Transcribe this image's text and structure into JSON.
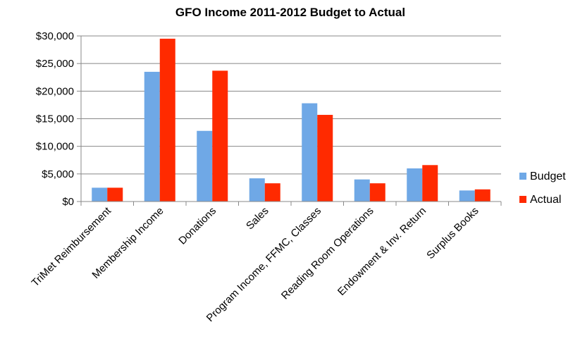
{
  "chart_data": {
    "type": "bar",
    "title": "GFO Income 2011-2012 Budget to Actual",
    "xlabel": "",
    "ylabel": "",
    "categories": [
      "TriMet Reimbursement",
      "Membership Income",
      "Donations",
      "Sales",
      "Program Income, FFMC, Classes",
      "Reading Room Operations",
      "Endowment & Inv. Return",
      "Surplus Books"
    ],
    "series": [
      {
        "name": "Budget",
        "color": "#6fa8e6",
        "values": [
          2500,
          23500,
          12800,
          4200,
          17800,
          4000,
          6000,
          2000
        ]
      },
      {
        "name": "Actual",
        "color": "#ff2a00",
        "values": [
          2500,
          29500,
          23700,
          3300,
          15700,
          3300,
          6600,
          2200
        ]
      }
    ],
    "ylim": [
      0,
      30000
    ],
    "yticks": [
      0,
      5000,
      10000,
      15000,
      20000,
      25000,
      30000
    ],
    "ytick_labels": [
      "$0",
      "$5,000",
      "$10,000",
      "$15,000",
      "$20,000",
      "$25,000",
      "$30,000"
    ],
    "grid": true,
    "legend_position": "right"
  }
}
